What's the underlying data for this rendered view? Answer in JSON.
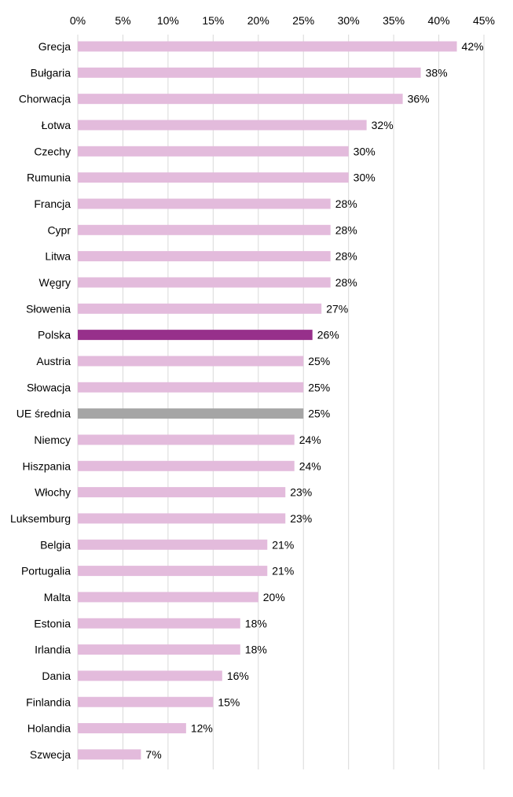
{
  "chart_data": {
    "type": "bar",
    "orientation": "horizontal",
    "title": "",
    "xlabel": "",
    "ylabel": "",
    "xlim": [
      0,
      45
    ],
    "x_ticks": [
      "0%",
      "5%",
      "10%",
      "15%",
      "20%",
      "25%",
      "30%",
      "35%",
      "40%",
      "45%"
    ],
    "x_axis_position": "top",
    "grid": true,
    "legend": "none",
    "value_suffix": "%",
    "categories": [
      "Grecja",
      "Bułgaria",
      "Chorwacja",
      "Łotwa",
      "Czechy",
      "Rumunia",
      "Francja",
      "Cypr",
      "Litwa",
      "Węgry",
      "Słowenia",
      "Polska",
      "Austria",
      "Słowacja",
      "UE średnia",
      "Niemcy",
      "Hiszpania",
      "Włochy",
      "Luksemburg",
      "Belgia",
      "Portugalia",
      "Malta",
      "Estonia",
      "Irlandia",
      "Dania",
      "Finlandia",
      "Holandia",
      "Szwecja"
    ],
    "values": [
      42,
      38,
      36,
      32,
      30,
      30,
      28,
      28,
      28,
      28,
      27,
      26,
      25,
      25,
      25,
      24,
      24,
      23,
      23,
      21,
      21,
      20,
      18,
      18,
      16,
      15,
      12,
      7
    ],
    "value_labels": [
      "42%",
      "38%",
      "36%",
      "32%",
      "30%",
      "30%",
      "28%",
      "28%",
      "28%",
      "28%",
      "27%",
      "26%",
      "25%",
      "25%",
      "25%",
      "24%",
      "24%",
      "23%",
      "23%",
      "21%",
      "21%",
      "20%",
      "18%",
      "18%",
      "16%",
      "15%",
      "12%",
      "7%"
    ],
    "colors": {
      "default": "#e3bbdc",
      "Polska": "#97308b",
      "UE średnia": "#a5a5a5"
    }
  }
}
